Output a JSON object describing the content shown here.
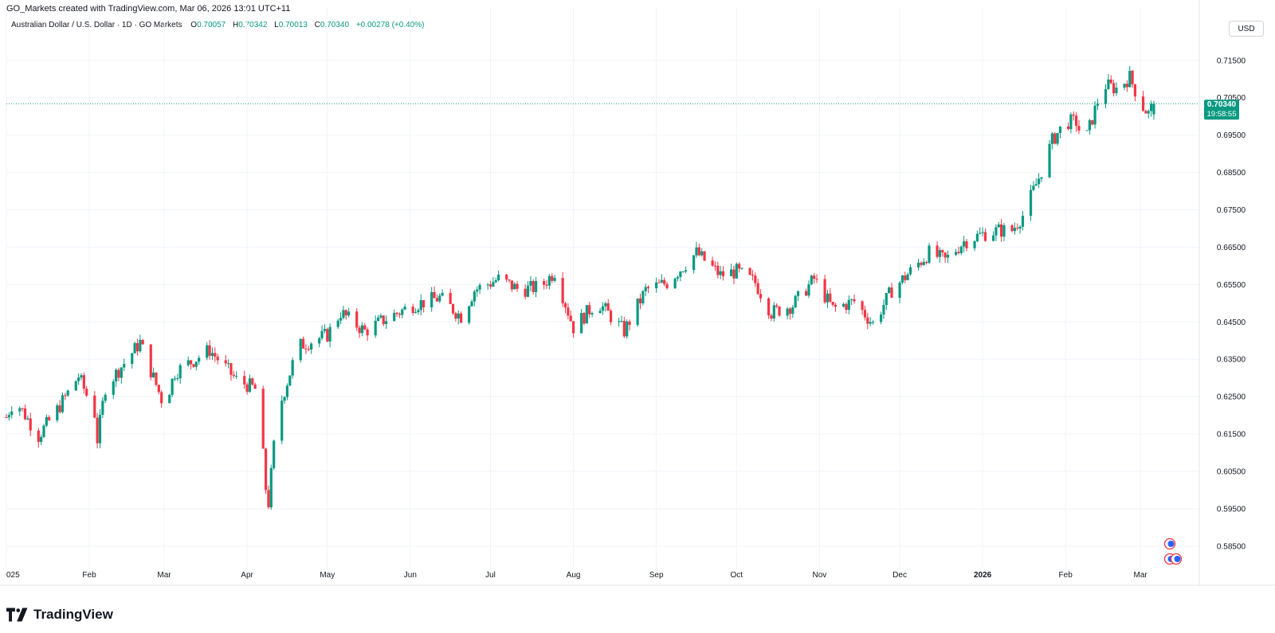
{
  "header": {
    "credit": "GO_Markets created with TradingView.com, Mar 06, 2026 13:01 UTC+11",
    "symbol": "Australian Dollar / U.S. Dollar · 1D · GO Markets",
    "open_label": "O",
    "open": "0.70057",
    "high_label": "H",
    "high": "0.70342",
    "low_label": "L",
    "low": "0.70013",
    "close_label": "C",
    "close": "0.70340",
    "change": "+0.00278 (+0.40%)"
  },
  "currency_button": "USD",
  "brand": {
    "name": "TradingView"
  },
  "price_tag": {
    "price": "0.70340",
    "countdown": "19:58:55",
    "color": "#089981"
  },
  "colors": {
    "up": "#089981",
    "down": "#f23645",
    "grid": "#f0f3fa",
    "axis_text": "#131722"
  },
  "chart_data": {
    "type": "candlestick",
    "title": "",
    "y_ticks": [
      "0.71500",
      "0.70500",
      "0.69500",
      "0.68500",
      "0.67500",
      "0.66500",
      "0.65500",
      "0.64500",
      "0.63500",
      "0.62500",
      "0.61500",
      "0.60500",
      "0.59500",
      "0.58500"
    ],
    "ylim": [
      0.5805,
      0.7205
    ],
    "x_ticks": [
      {
        "label": "025",
        "date": "2025-01-01"
      },
      {
        "label": "Feb",
        "date": "2025-02-01"
      },
      {
        "label": "Mar",
        "date": "2025-03-01"
      },
      {
        "label": "Apr",
        "date": "2025-04-01"
      },
      {
        "label": "May",
        "date": "2025-05-01"
      },
      {
        "label": "Jun",
        "date": "2025-06-01"
      },
      {
        "label": "Jul",
        "date": "2025-07-01"
      },
      {
        "label": "Aug",
        "date": "2025-08-01"
      },
      {
        "label": "Sep",
        "date": "2025-09-01"
      },
      {
        "label": "Oct",
        "date": "2025-10-01"
      },
      {
        "label": "Nov",
        "date": "2025-11-01"
      },
      {
        "label": "Dec",
        "date": "2025-12-01"
      },
      {
        "label": "2026",
        "date": "2026-01-01",
        "bold": true
      },
      {
        "label": "Feb",
        "date": "2026-02-01"
      },
      {
        "label": "Mar",
        "date": "2026-03-01"
      }
    ],
    "xlim": [
      "2025-01-01",
      "2026-03-23"
    ],
    "last_price": 0.7034,
    "series_anchors": [
      {
        "date": "2025-01-01",
        "close": 0.6195
      },
      {
        "date": "2025-01-04",
        "close": 0.6245
      },
      {
        "date": "2025-01-13",
        "close": 0.6145
      },
      {
        "date": "2025-01-20",
        "close": 0.6215
      },
      {
        "date": "2025-01-28",
        "close": 0.6305
      },
      {
        "date": "2025-02-03",
        "close": 0.6205
      },
      {
        "date": "2025-02-04",
        "close": 0.6135
      },
      {
        "date": "2025-02-07",
        "close": 0.6275
      },
      {
        "date": "2025-02-20",
        "close": 0.6395
      },
      {
        "date": "2025-03-01",
        "close": 0.6225
      },
      {
        "date": "2025-03-05",
        "close": 0.6315
      },
      {
        "date": "2025-03-18",
        "close": 0.6375
      },
      {
        "date": "2025-03-28",
        "close": 0.6295
      },
      {
        "date": "2025-04-03",
        "close": 0.6275
      },
      {
        "date": "2025-04-05",
        "close": 0.6265
      },
      {
        "date": "2025-04-08",
        "close": 0.6005
      },
      {
        "date": "2025-04-09",
        "close": 0.5965
      },
      {
        "date": "2025-04-12",
        "close": 0.6195
      },
      {
        "date": "2025-04-20",
        "close": 0.6385
      },
      {
        "date": "2025-05-01",
        "close": 0.6415
      },
      {
        "date": "2025-05-06",
        "close": 0.6475
      },
      {
        "date": "2025-05-15",
        "close": 0.6425
      },
      {
        "date": "2025-05-22",
        "close": 0.6455
      },
      {
        "date": "2025-06-02",
        "close": 0.6495
      },
      {
        "date": "2025-06-12",
        "close": 0.6515
      },
      {
        "date": "2025-06-20",
        "close": 0.6465
      },
      {
        "date": "2025-06-25",
        "close": 0.6535
      },
      {
        "date": "2025-07-04",
        "close": 0.6565
      },
      {
        "date": "2025-07-12",
        "close": 0.6535
      },
      {
        "date": "2025-07-20",
        "close": 0.6545
      },
      {
        "date": "2025-07-25",
        "close": 0.6585
      },
      {
        "date": "2025-08-01",
        "close": 0.6435
      },
      {
        "date": "2025-08-10",
        "close": 0.6505
      },
      {
        "date": "2025-08-20",
        "close": 0.6425
      },
      {
        "date": "2025-08-28",
        "close": 0.6535
      },
      {
        "date": "2025-09-05",
        "close": 0.6555
      },
      {
        "date": "2025-09-16",
        "close": 0.6635
      },
      {
        "date": "2025-09-25",
        "close": 0.6575
      },
      {
        "date": "2025-10-01",
        "close": 0.6585
      },
      {
        "date": "2025-10-08",
        "close": 0.6555
      },
      {
        "date": "2025-10-14",
        "close": 0.6475
      },
      {
        "date": "2025-10-22",
        "close": 0.6495
      },
      {
        "date": "2025-10-30",
        "close": 0.6565
      },
      {
        "date": "2025-11-06",
        "close": 0.6485
      },
      {
        "date": "2025-11-14",
        "close": 0.6505
      },
      {
        "date": "2025-11-21",
        "close": 0.6445
      },
      {
        "date": "2025-11-28",
        "close": 0.6535
      },
      {
        "date": "2025-12-05",
        "close": 0.6585
      },
      {
        "date": "2025-12-12",
        "close": 0.6635
      },
      {
        "date": "2025-12-18",
        "close": 0.6615
      },
      {
        "date": "2025-12-25",
        "close": 0.6665
      },
      {
        "date": "2026-01-01",
        "close": 0.6685
      },
      {
        "date": "2026-01-07",
        "close": 0.6695
      },
      {
        "date": "2026-01-12",
        "close": 0.6695
      },
      {
        "date": "2026-01-16",
        "close": 0.6735
      },
      {
        "date": "2026-01-22",
        "close": 0.6835
      },
      {
        "date": "2026-01-27",
        "close": 0.6935
      },
      {
        "date": "2026-02-01",
        "close": 0.6985
      },
      {
        "date": "2026-02-05",
        "close": 0.6985
      },
      {
        "date": "2026-02-08",
        "close": 0.6925
      },
      {
        "date": "2026-02-11",
        "close": 0.6995
      },
      {
        "date": "2026-02-15",
        "close": 0.7085
      },
      {
        "date": "2026-02-20",
        "close": 0.7075
      },
      {
        "date": "2026-02-25",
        "close": 0.7105
      },
      {
        "date": "2026-03-01",
        "close": 0.7035
      },
      {
        "date": "2026-03-04",
        "close": 0.7007
      },
      {
        "date": "2026-03-06",
        "close": 0.7034
      }
    ]
  }
}
